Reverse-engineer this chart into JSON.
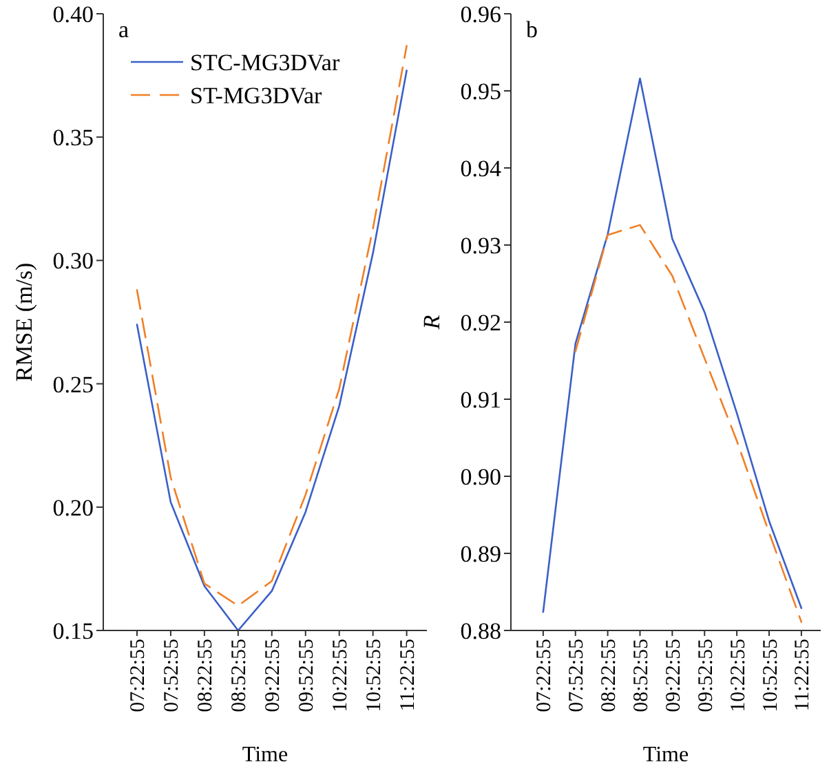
{
  "chart_data": [
    {
      "type": "line",
      "annotations": [
        "a"
      ],
      "xlabel": "Time",
      "ylabel": "RMSE (m/s)",
      "categories": [
        "07:22:55",
        "07:52:55",
        "08:22:55",
        "08:52:55",
        "09:22:55",
        "09:52:55",
        "10:22:55",
        "10:52:55",
        "11:22:55"
      ],
      "series": [
        {
          "name": "STC-MG3DVar",
          "color": "#3a5fc8",
          "line_style": "solid",
          "values": [
            0.274,
            0.202,
            0.168,
            0.15,
            0.166,
            0.198,
            0.241,
            0.303,
            0.377
          ]
        },
        {
          "name": "ST-MG3DVar",
          "color": "#f07f26",
          "line_style": "dashed",
          "values": [
            0.288,
            0.212,
            0.169,
            0.16,
            0.17,
            0.205,
            0.248,
            0.313,
            0.387
          ]
        }
      ],
      "ylim": [
        0.15,
        0.4
      ],
      "yticks": [
        0.15,
        {
          "value": 0.2,
          "label": "0.20"
        },
        0.25,
        {
          "value": 0.3,
          "label": "0.30"
        },
        0.35,
        {
          "value": 0.4,
          "label": "0.40"
        }
      ],
      "legend": "top left",
      "grid": false
    },
    {
      "type": "line",
      "annotations": [
        "b"
      ],
      "xlabel": "Time",
      "ylabel": "R",
      "categories": [
        "07:22:55",
        "07:52:55",
        "08:22:55",
        "08:52:55",
        "09:22:55",
        "09:52:55",
        "10:22:55",
        "10:52:55",
        "11:22:55"
      ],
      "series": [
        {
          "color": "#3a5fc8",
          "line_style": "solid",
          "values": [
            0.8824,
            0.9172,
            0.9314,
            0.9516,
            0.9308,
            0.9213,
            0.9082,
            0.8942,
            0.8829
          ]
        },
        {
          "color": "#f07f26",
          "line_style": "dashed",
          "values": [
            null,
            0.9162,
            0.9313,
            0.9326,
            0.926,
            0.9153,
            0.9046,
            0.8927,
            0.8811
          ]
        }
      ],
      "ylim": [
        0.88,
        0.96
      ],
      "yticks": [
        0.88,
        0.89,
        {
          "value": 0.9,
          "label": "0.90"
        },
        0.91,
        0.92,
        0.93,
        0.94,
        0.95,
        0.96
      ],
      "legend": false,
      "grid": false
    }
  ]
}
